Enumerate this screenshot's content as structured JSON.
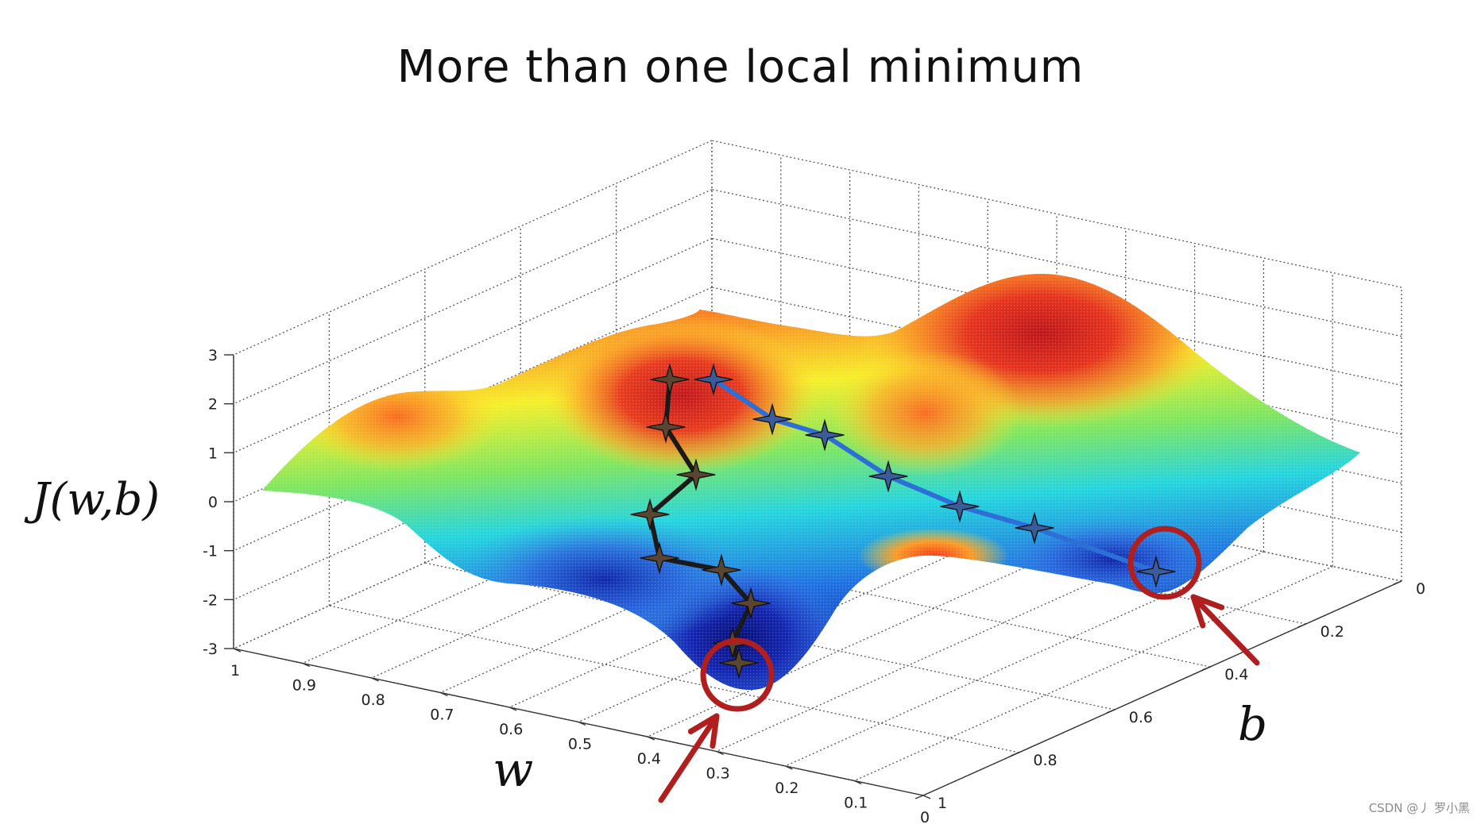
{
  "chart_data": {
    "type": "surface",
    "title": "More than one local minimum",
    "zlabel": "J(w,b)",
    "xlabel": "w",
    "ylabel": "b",
    "x_ticks": [
      "1",
      "0.9",
      "0.8",
      "0.7",
      "0.6",
      "0.5",
      "0.4",
      "0.3",
      "0.2",
      "0.1",
      "0"
    ],
    "y_ticks": [
      "0",
      "0.2",
      "0.4",
      "0.6",
      "0.8",
      "1"
    ],
    "z_ticks": [
      "3",
      "2",
      "1",
      "0",
      "-1",
      "-2",
      "-3"
    ],
    "xlim": [
      0,
      1
    ],
    "ylim": [
      0,
      1
    ],
    "zlim": [
      -3,
      3
    ],
    "grid": true,
    "colormap": "jet",
    "series": [
      {
        "color": "#1a1a1a",
        "marker": "four-point-star",
        "points": [
          {
            "w": 0.5,
            "b": 0.37,
            "J": 2.1
          },
          {
            "w": 0.52,
            "b": 0.4,
            "J": 1.5
          },
          {
            "w": 0.54,
            "b": 0.44,
            "J": 0.8
          },
          {
            "w": 0.58,
            "b": 0.5,
            "J": 0.1
          },
          {
            "w": 0.56,
            "b": 0.54,
            "J": -0.5
          },
          {
            "w": 0.5,
            "b": 0.54,
            "J": -0.8
          },
          {
            "w": 0.45,
            "b": 0.53,
            "J": -1.3
          },
          {
            "w": 0.43,
            "b": 0.57,
            "J": -2.0
          },
          {
            "w": 0.4,
            "b": 0.6,
            "J": -2.5
          }
        ]
      },
      {
        "color": "#2d6fd6",
        "marker": "four-point-star",
        "points": [
          {
            "w": 0.5,
            "b": 0.33,
            "J": 2.1
          },
          {
            "w": 0.5,
            "b": 0.28,
            "J": 1.6
          },
          {
            "w": 0.45,
            "b": 0.25,
            "J": 1.3
          },
          {
            "w": 0.4,
            "b": 0.22,
            "J": 0.8
          },
          {
            "w": 0.3,
            "b": 0.2,
            "J": 0.2
          },
          {
            "w": 0.2,
            "b": 0.16,
            "J": -0.4
          },
          {
            "w": 0.1,
            "b": 0.13,
            "J": -0.9
          }
        ]
      }
    ],
    "annotations": [
      "local minimum circle near w≈0.4, b≈0.6",
      "local minimum circle near w≈0.1, b≈0.13"
    ]
  },
  "watermark": "CSDN @丿 罗小黑",
  "colors": {
    "annotation": "#b01e1e",
    "path_black": "#1a1a1a",
    "path_blue": "#2d6fd6",
    "grid": "#555555"
  }
}
